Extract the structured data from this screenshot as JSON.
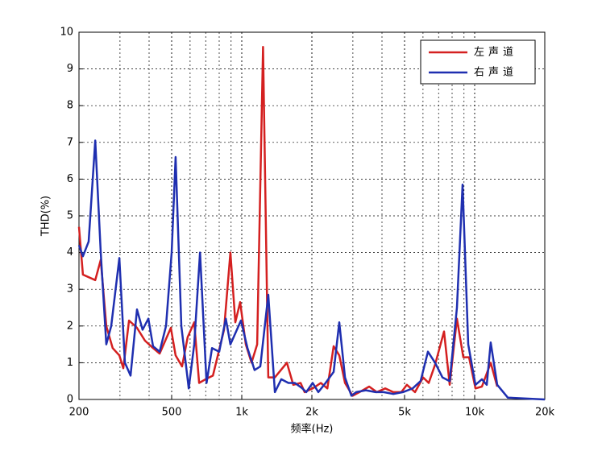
{
  "chart_data": {
    "type": "line",
    "xlabel": "频率(Hz)",
    "ylabel": "THD(%)",
    "xscale": "log",
    "xlim": [
      200,
      20000
    ],
    "ylim": [
      0,
      10
    ],
    "xticks": [
      200,
      500,
      {
        "value": 1000,
        "label": "1k"
      },
      {
        "value": 2000,
        "label": "2k"
      },
      {
        "value": 5000,
        "label": "5k"
      },
      {
        "value": 10000,
        "label": "10k"
      },
      {
        "value": 20000,
        "label": "20k"
      }
    ],
    "yticks": [
      0,
      1,
      2,
      3,
      4,
      5,
      6,
      7,
      8,
      9,
      10
    ],
    "grid": true,
    "minor_grid": true,
    "legend": "top-right",
    "series": [
      {
        "name": "左声道",
        "color": "#d42020",
        "x": [
          200,
          208,
          235,
          248,
          262,
          279,
          298,
          310,
          328,
          355,
          384,
          416,
          444,
          496,
          520,
          554,
          586,
          625,
          656,
          699,
          752,
          839,
          894,
          938,
          984,
          1041,
          1101,
          1164,
          1234,
          1300,
          1387,
          1562,
          1664,
          1789,
          1862,
          2016,
          2185,
          2330,
          2480,
          2622,
          2774,
          2993,
          3200,
          3524,
          3800,
          4130,
          4475,
          4842,
          5118,
          5546,
          6006,
          6351,
          6765,
          7386,
          7810,
          8394,
          8940,
          9458,
          10080,
          10740,
          11720,
          12500
        ],
        "values": [
          4.7,
          3.4,
          3.25,
          3.8,
          2.0,
          1.4,
          1.2,
          0.85,
          2.15,
          1.95,
          1.6,
          1.4,
          1.25,
          1.95,
          1.2,
          0.9,
          1.7,
          2.1,
          0.45,
          0.55,
          0.65,
          1.9,
          4.0,
          2.1,
          2.65,
          1.5,
          1.0,
          1.5,
          9.6,
          0.6,
          0.6,
          1.0,
          0.4,
          0.45,
          0.2,
          0.3,
          0.45,
          0.3,
          1.45,
          1.2,
          0.45,
          0.1,
          0.2,
          0.35,
          0.2,
          0.3,
          0.2,
          0.2,
          0.4,
          0.2,
          0.6,
          0.45,
          0.95,
          1.85,
          0.4,
          2.2,
          1.15,
          1.15,
          0.3,
          0.35,
          1.0,
          0.35
        ]
      },
      {
        "name": "右声道",
        "color": "#1f2fb0",
        "x": [
          200,
          208,
          220,
          235,
          248,
          262,
          275,
          298,
          315,
          333,
          355,
          375,
          397,
          416,
          444,
          473,
          500,
          520,
          550,
          592,
          625,
          662,
          706,
          745,
          800,
          854,
          894,
          938,
          992,
          1058,
          1135,
          1201,
          1300,
          1387,
          1478,
          1586,
          1690,
          1820,
          1892,
          2016,
          2132,
          2290,
          2480,
          2622,
          2774,
          2956,
          3099,
          3411,
          3755,
          4065,
          4475,
          4920,
          5414,
          5860,
          6300,
          6765,
          7272,
          7810,
          8394,
          8872,
          9380,
          10080,
          10740,
          11270,
          11720,
          12500,
          13870,
          20000
        ],
        "values": [
          4.2,
          3.9,
          4.3,
          7.05,
          4.0,
          1.5,
          2.0,
          3.85,
          1.0,
          0.65,
          2.45,
          1.9,
          2.2,
          1.45,
          1.3,
          2.0,
          4.0,
          6.6,
          2.0,
          0.3,
          1.5,
          4.0,
          0.45,
          1.4,
          1.3,
          2.2,
          1.5,
          1.8,
          2.15,
          1.4,
          0.8,
          0.9,
          2.85,
          0.2,
          0.55,
          0.45,
          0.45,
          0.3,
          0.2,
          0.45,
          0.2,
          0.45,
          0.75,
          2.1,
          0.6,
          0.1,
          0.2,
          0.25,
          0.2,
          0.2,
          0.15,
          0.2,
          0.3,
          0.5,
          1.3,
          1.0,
          0.6,
          0.5,
          2.5,
          5.85,
          1.5,
          0.4,
          0.55,
          0.4,
          1.55,
          0.4,
          0.05,
          0
        ]
      }
    ]
  }
}
